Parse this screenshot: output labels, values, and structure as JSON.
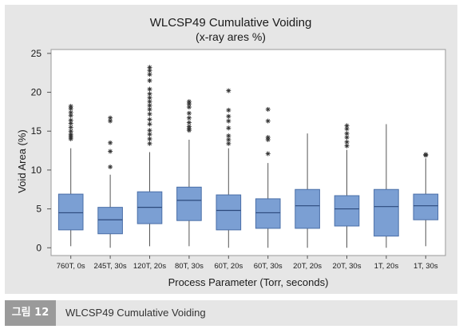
{
  "chart_data": {
    "type": "boxplot",
    "title": "WLCSP49 Cumulative Voiding",
    "subtitle": "(x-ray ares %)",
    "xlabel": "Process Parameter (Torr, seconds)",
    "ylabel": "Void Area (%)",
    "ylim": [
      -1,
      25.5
    ],
    "yticks": [
      0,
      5,
      10,
      15,
      20,
      25
    ],
    "grid": false,
    "box_color": "#7b9fd3",
    "box_edge": "#4a6fa8",
    "outlier_color": "#333333",
    "categories": [
      "760T, 0s",
      "245T, 30s",
      "120T, 20s",
      "80T, 30s",
      "60T, 20s",
      "60T, 30s",
      "20T, 20s",
      "20T, 30s",
      "1T, 20s",
      "1T, 30s"
    ],
    "boxes": [
      {
        "whisker_low": 0.2,
        "q1": 2.3,
        "median": 4.5,
        "q3": 6.9,
        "whisker_high": 12.8,
        "outliers": [
          14.0,
          14.2,
          14.4,
          14.6,
          15.0,
          15.5,
          16.0,
          16.4,
          17.0,
          17.4,
          17.9,
          18.2
        ]
      },
      {
        "whisker_low": 0.0,
        "q1": 1.8,
        "median": 3.6,
        "q3": 5.2,
        "whisker_high": 9.4,
        "outliers": [
          10.4,
          12.4,
          13.5,
          16.3,
          16.7
        ]
      },
      {
        "whisker_low": 0.2,
        "q1": 3.1,
        "median": 5.2,
        "q3": 7.2,
        "whisker_high": 12.3,
        "outliers": [
          13.4,
          14.0,
          14.6,
          15.1,
          15.9,
          16.5,
          17.2,
          17.8,
          18.3,
          18.8,
          19.3,
          19.8,
          20.4,
          21.5,
          22.3,
          22.8,
          23.2
        ]
      },
      {
        "whisker_low": 0.2,
        "q1": 3.5,
        "median": 6.1,
        "q3": 7.8,
        "whisker_high": 13.9,
        "outliers": [
          15.1,
          15.3,
          15.6,
          16.1,
          16.7,
          17.3,
          18.1,
          18.5,
          18.8
        ]
      },
      {
        "whisker_low": 0.0,
        "q1": 2.3,
        "median": 4.8,
        "q3": 6.8,
        "whisker_high": 12.8,
        "outliers": [
          13.4,
          13.9,
          14.4,
          15.4,
          16.3,
          16.9,
          17.7,
          20.2
        ]
      },
      {
        "whisker_low": 0.0,
        "q1": 2.5,
        "median": 4.5,
        "q3": 6.3,
        "whisker_high": 10.9,
        "outliers": [
          12.1,
          13.9,
          14.2,
          16.3,
          17.8
        ]
      },
      {
        "whisker_low": 0.0,
        "q1": 2.5,
        "median": 5.4,
        "q3": 7.5,
        "whisker_high": 14.7,
        "outliers": []
      },
      {
        "whisker_low": 0.0,
        "q1": 2.8,
        "median": 5.0,
        "q3": 6.7,
        "whisker_high": 12.6,
        "outliers": [
          13.1,
          13.6,
          14.2,
          14.7,
          15.3,
          15.7
        ]
      },
      {
        "whisker_low": 0.0,
        "q1": 1.5,
        "median": 5.3,
        "q3": 7.5,
        "whisker_high": 15.9,
        "outliers": []
      },
      {
        "whisker_low": 0.2,
        "q1": 3.6,
        "median": 5.4,
        "q3": 6.9,
        "whisker_high": 11.5,
        "outliers": [
          11.9,
          12.0
        ]
      }
    ]
  },
  "caption": {
    "tag": "그림 12",
    "text": "WLCSP49 Cumulative Voiding"
  }
}
